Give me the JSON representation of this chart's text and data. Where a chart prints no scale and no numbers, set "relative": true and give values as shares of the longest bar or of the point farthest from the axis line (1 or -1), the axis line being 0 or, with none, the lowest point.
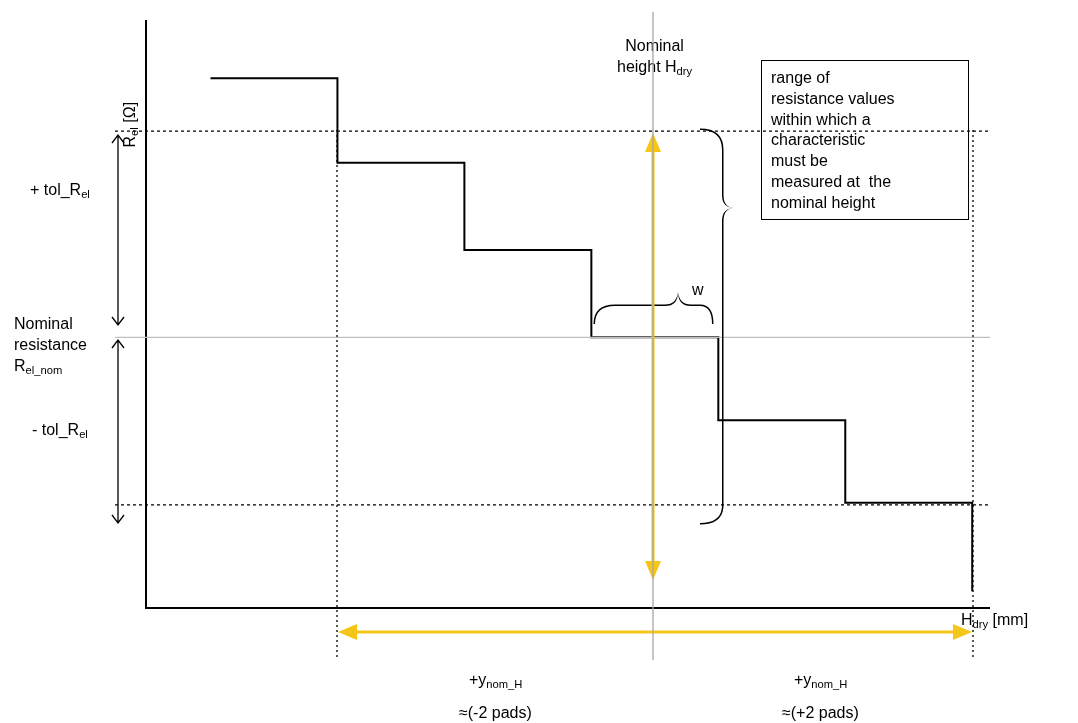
{
  "chart_data": {
    "type": "step",
    "relative": true,
    "categories": [
      null,
      null,
      null,
      null,
      null,
      null,
      null
    ],
    "series": [
      {
        "color": "#000000",
        "values": [
          1,
          0.84,
          0.675,
          0.51,
          0.353,
          0.197,
          0.03
        ]
      }
    ],
    "xlabel": "H$_{dry}$ [mm]",
    "ylabel": "R$_{el}$ [Ω]",
    "ref_lines": [
      {
        "axis": "y",
        "value": 0.9,
        "label": null,
        "color": "#000000",
        "line_style": "dotted"
      },
      {
        "axis": "y",
        "value": 0.193,
        "label": null,
        "color": "#000000",
        "line_style": "dotted"
      },
      {
        "axis": "y",
        "value": 0.51,
        "label": null,
        "color": "#bfbfbf",
        "line_style": "solid"
      }
    ],
    "annotations": [
      "Nominal\nresistance\nR$_{el_nom}$",
      "Nominal\nheight H$_{dry}$",
      "range of\nresistance values\nwithin which a\ncharacteristic\nmust be\nmeasured at  the\nnominal height",
      "+ tol_R$_{el}$",
      "- tol_R$_{el}$",
      "w",
      "+y$_{nom_H}$",
      "+y$_{nom_H}$",
      "≈(-2 pads)",
      "≈(+2 pads)"
    ]
  }
}
